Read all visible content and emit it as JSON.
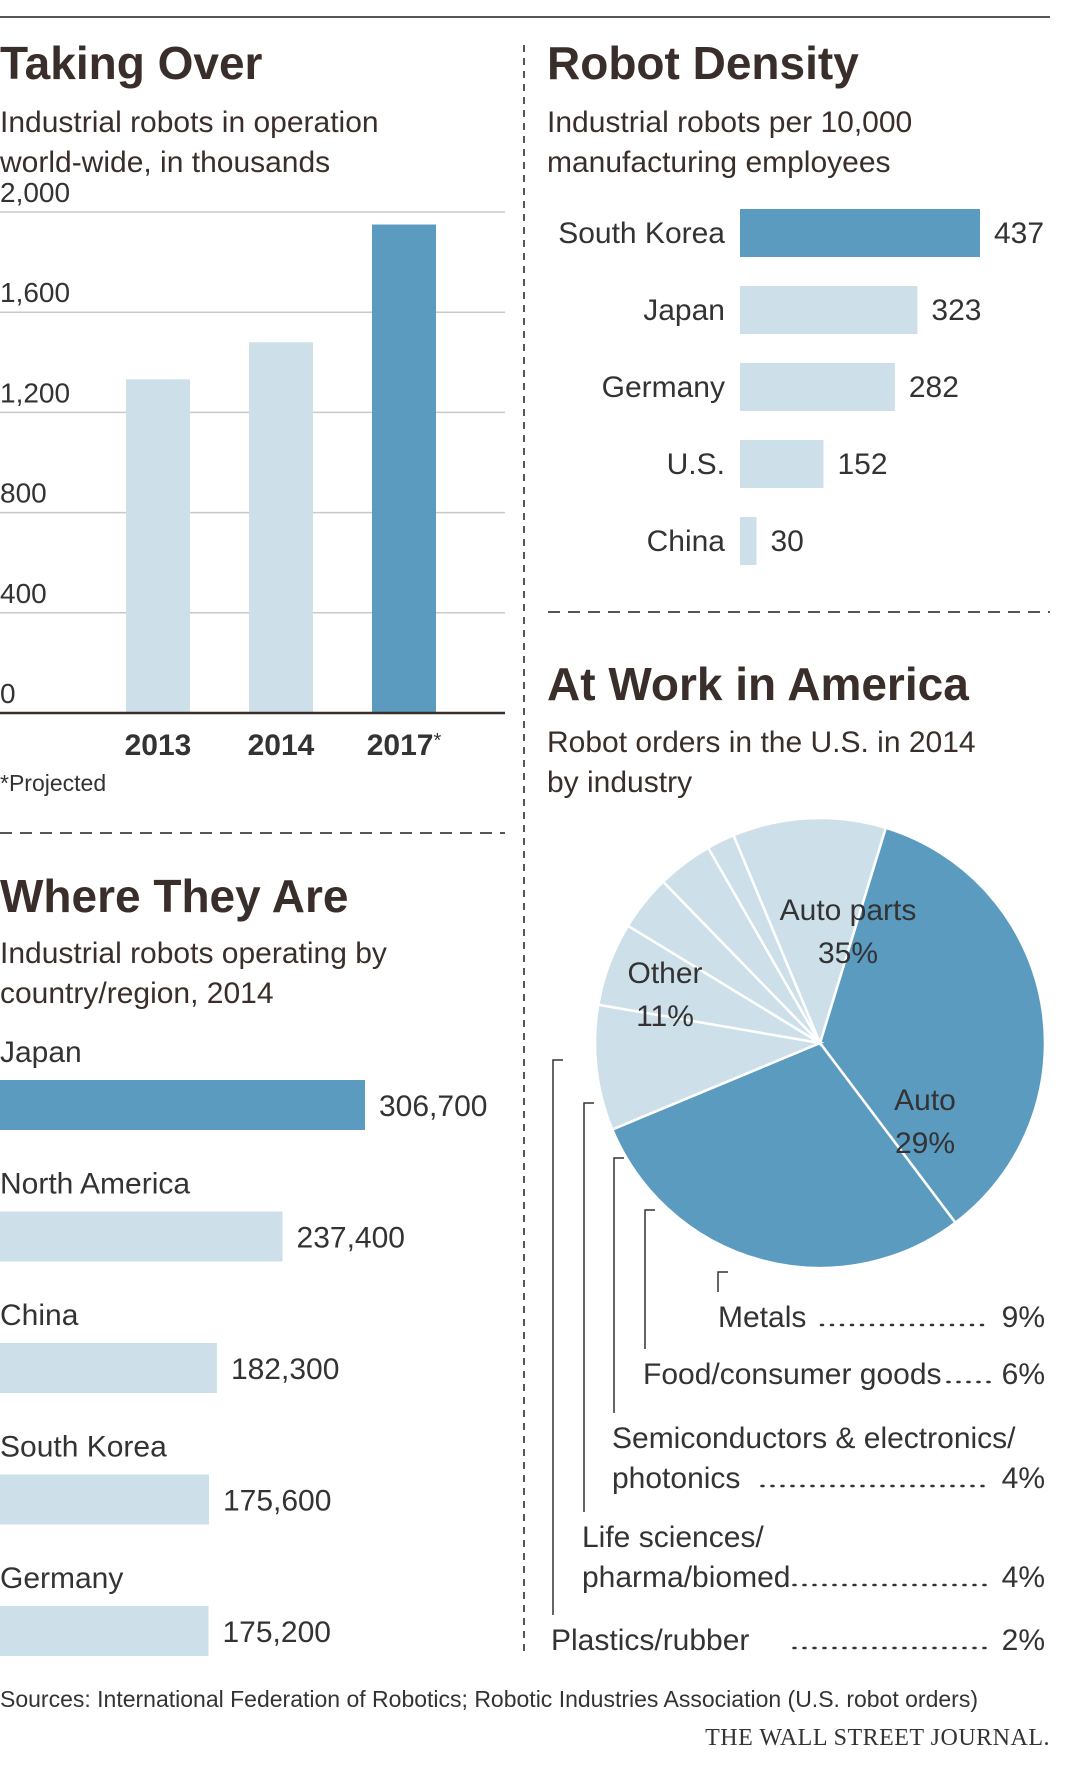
{
  "colors": {
    "highlight": "#5b9bc0",
    "base": "#cde0ea",
    "text": "#333333",
    "grid": "#c9c9c9"
  },
  "chart_data": [
    {
      "type": "bar",
      "title": "Taking Over",
      "subtitle_lines": [
        "Industrial robots in operation",
        "world-wide, in thousands"
      ],
      "categories": [
        "2013",
        "2014",
        "2017"
      ],
      "category_marks": [
        "",
        "",
        "*"
      ],
      "values": [
        1332,
        1480,
        1950
      ],
      "highlight": [
        false,
        false,
        true
      ],
      "yticks": [
        "2,000",
        "1,600",
        "1,200",
        "800",
        "400",
        "0"
      ],
      "ylim": [
        0,
        2000
      ],
      "grid": true,
      "footnote": "*Projected"
    },
    {
      "type": "bar",
      "orientation": "horizontal",
      "title": "Robot Density",
      "subtitle_lines": [
        "Industrial robots per 10,000",
        "manufacturing employees"
      ],
      "categories": [
        "South Korea",
        "Japan",
        "Germany",
        "U.S.",
        "China"
      ],
      "values": [
        437,
        323,
        282,
        152,
        30
      ],
      "value_labels": [
        "437",
        "323",
        "282",
        "152",
        "30"
      ],
      "highlight": [
        true,
        false,
        false,
        false,
        false
      ]
    },
    {
      "type": "bar",
      "orientation": "horizontal",
      "title": "Where They Are",
      "subtitle_lines": [
        "Industrial robots operating by",
        "country/region, 2014"
      ],
      "categories": [
        "Japan",
        "North America",
        "China",
        "South Korea",
        "Germany"
      ],
      "values": [
        306700,
        237400,
        182300,
        175600,
        175200
      ],
      "value_labels": [
        "306,700",
        "237,400",
        "182,300",
        "175,600",
        "175,200"
      ],
      "highlight": [
        true,
        false,
        false,
        false,
        false
      ]
    },
    {
      "type": "pie",
      "title": "At Work in America",
      "subtitle_lines": [
        "Robot orders in the U.S. in 2014",
        "by industry"
      ],
      "slices": [
        {
          "label": "Auto parts",
          "value": 35,
          "value_label": "35%",
          "highlight": true
        },
        {
          "label": "Auto",
          "value": 29,
          "value_label": "29%",
          "highlight": true
        },
        {
          "label": "Metals",
          "value": 9,
          "value_label": "9%",
          "highlight": false
        },
        {
          "label": "Food/consumer goods",
          "value": 6,
          "value_label": "6%",
          "highlight": false
        },
        {
          "label": "Semiconductors & electronics/ photonics",
          "value": 4,
          "value_label": "4%",
          "highlight": false
        },
        {
          "label": "Life sciences/ pharma/biomed",
          "value": 4,
          "value_label": "4%",
          "highlight": false
        },
        {
          "label": "Plastics/rubber",
          "value": 2,
          "value_label": "2%",
          "highlight": false
        },
        {
          "label": "Other",
          "value": 11,
          "value_label": "11%",
          "highlight": false
        }
      ],
      "legend_lines": [
        [
          "Metals"
        ],
        [
          "Food/consumer goods"
        ],
        [
          "Semiconductors & electronics/",
          "photonics"
        ],
        [
          "Life sciences/",
          "pharma/biomed"
        ],
        [
          "Plastics/rubber"
        ]
      ]
    }
  ],
  "footer": {
    "sources": "Sources: International Federation of Robotics; Robotic Industries Association (U.S. robot orders)",
    "publisher": "THE WALL STREET JOURNAL."
  }
}
